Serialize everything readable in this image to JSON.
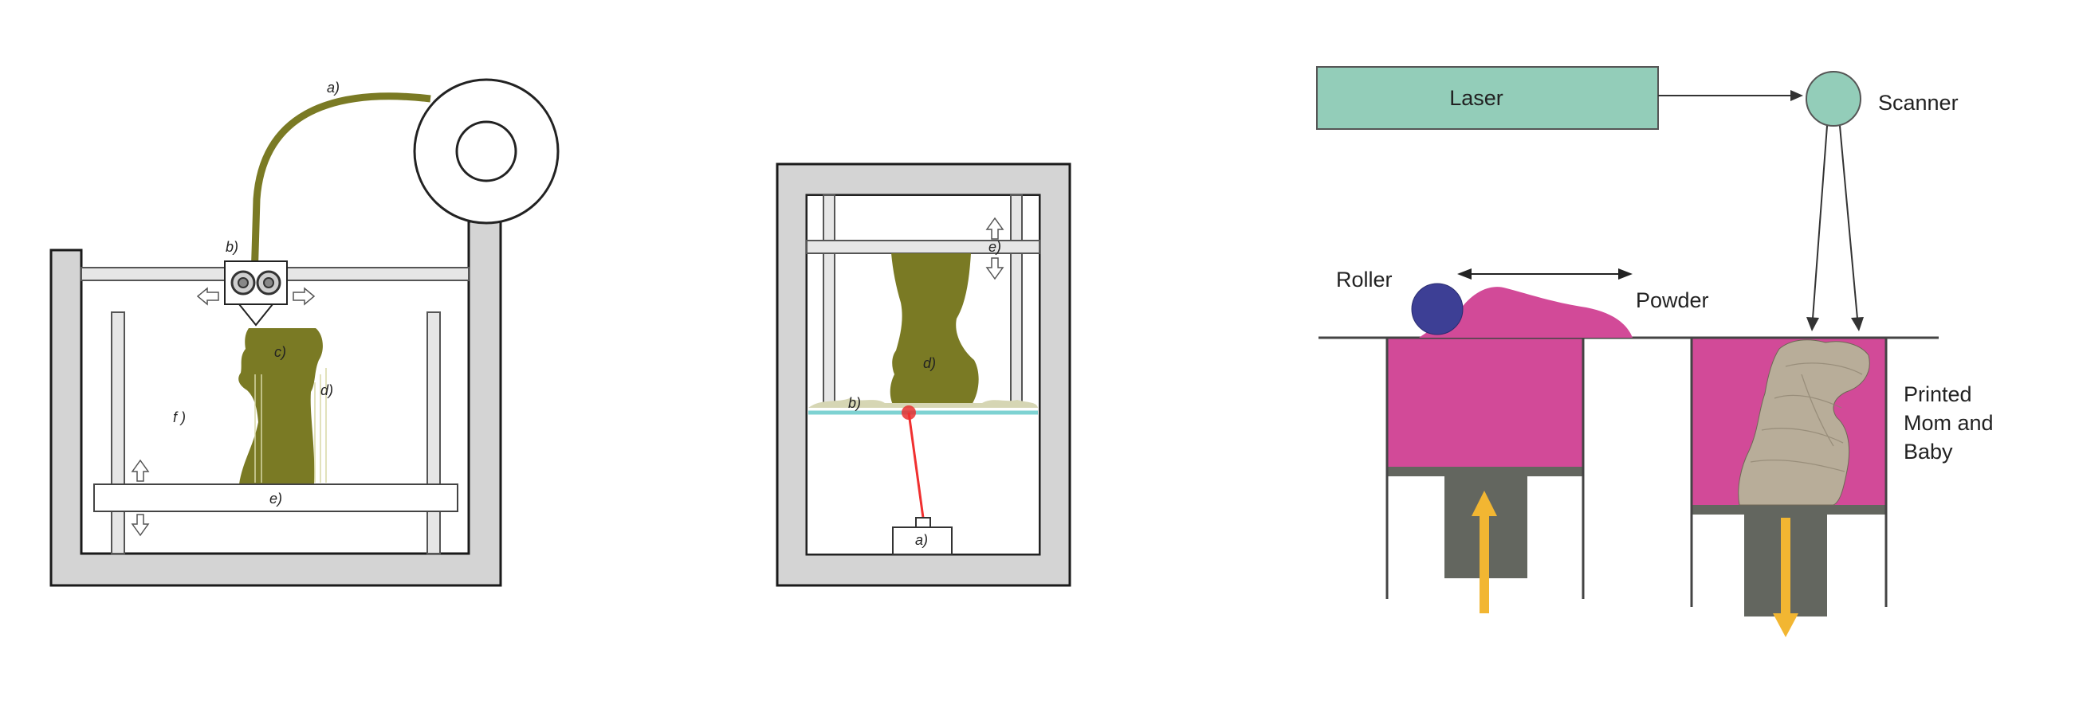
{
  "colors": {
    "frame": "#d4d4d4",
    "frame_stroke": "#1a1a1a",
    "filament": "#7a7a24",
    "model": "#7a7a24",
    "laser_box": "#93cdb9",
    "powder": "#d24a98",
    "roller": "#3d3f95",
    "piston": "#63665f",
    "arrow_up_down": "#f2b632",
    "printed_object": "#b8ad99",
    "laser_beam": "#f03030",
    "resin_line": "#7ed2d2"
  },
  "fdm": {
    "label_a": "a)",
    "label_b": "b)",
    "label_c": "c)",
    "label_d": "d)",
    "label_e": "e)",
    "label_f": "f )"
  },
  "sla": {
    "label_a": "a)",
    "label_b": "b)",
    "label_d": "d)",
    "label_e": "e)"
  },
  "sls": {
    "laser_label": "Laser",
    "scanner_label": "Scanner",
    "roller_label": "Roller",
    "powder_label": "Powder",
    "printed_label_line1": "Printed",
    "printed_label_line2": "Mom and",
    "printed_label_line3": "Baby"
  }
}
